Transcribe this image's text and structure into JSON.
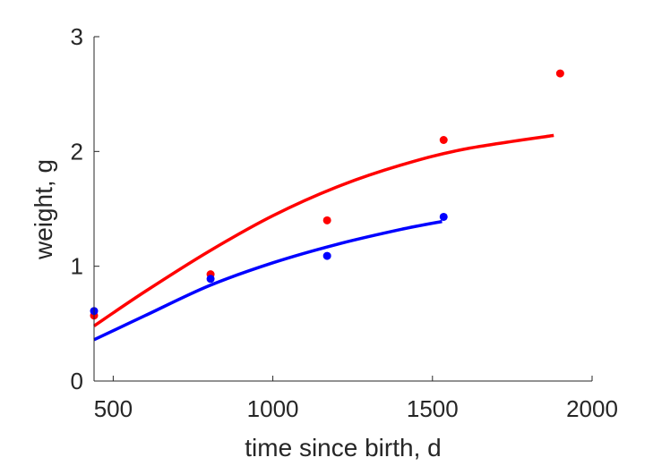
{
  "chart_data": {
    "type": "scatter",
    "xlabel": "time since birth, d",
    "ylabel": "weight, g",
    "xlim": [
      440,
      2000
    ],
    "ylim": [
      0,
      3
    ],
    "xticks": [
      500,
      1000,
      1500,
      2000
    ],
    "yticks": [
      0,
      1,
      2,
      3
    ],
    "grid": false,
    "series": [
      {
        "color": "#ff0000",
        "points": [
          {
            "x": 440,
            "y": 0.57
          },
          {
            "x": 805,
            "y": 0.93
          },
          {
            "x": 1170,
            "y": 1.4
          },
          {
            "x": 1535,
            "y": 2.1
          },
          {
            "x": 1900,
            "y": 2.68
          }
        ],
        "curve": [
          {
            "x": 440,
            "y": 0.48
          },
          {
            "x": 600,
            "y": 0.78
          },
          {
            "x": 800,
            "y": 1.13
          },
          {
            "x": 1000,
            "y": 1.44
          },
          {
            "x": 1200,
            "y": 1.69
          },
          {
            "x": 1400,
            "y": 1.88
          },
          {
            "x": 1600,
            "y": 2.02
          },
          {
            "x": 1880,
            "y": 2.14
          }
        ]
      },
      {
        "color": "#0000ff",
        "points": [
          {
            "x": 440,
            "y": 0.61
          },
          {
            "x": 805,
            "y": 0.89
          },
          {
            "x": 1170,
            "y": 1.09
          },
          {
            "x": 1535,
            "y": 1.43
          }
        ],
        "curve": [
          {
            "x": 440,
            "y": 0.36
          },
          {
            "x": 600,
            "y": 0.57
          },
          {
            "x": 800,
            "y": 0.83
          },
          {
            "x": 1000,
            "y": 1.03
          },
          {
            "x": 1200,
            "y": 1.19
          },
          {
            "x": 1400,
            "y": 1.32
          },
          {
            "x": 1530,
            "y": 1.39
          }
        ]
      }
    ]
  }
}
